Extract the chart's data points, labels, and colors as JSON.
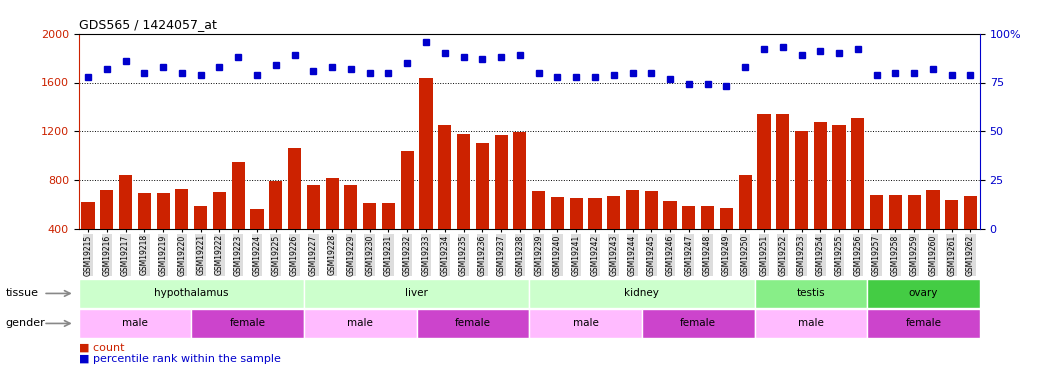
{
  "title": "GDS565 / 1424057_at",
  "samples": [
    "GSM19215",
    "GSM19216",
    "GSM19217",
    "GSM19218",
    "GSM19219",
    "GSM19220",
    "GSM19221",
    "GSM19222",
    "GSM19223",
    "GSM19224",
    "GSM19225",
    "GSM19226",
    "GSM19227",
    "GSM19228",
    "GSM19229",
    "GSM19230",
    "GSM19231",
    "GSM19232",
    "GSM19233",
    "GSM19234",
    "GSM19235",
    "GSM19236",
    "GSM19237",
    "GSM19238",
    "GSM19239",
    "GSM19240",
    "GSM19241",
    "GSM19242",
    "GSM19243",
    "GSM19244",
    "GSM19245",
    "GSM19246",
    "GSM19247",
    "GSM19248",
    "GSM19249",
    "GSM19250",
    "GSM19251",
    "GSM19252",
    "GSM19253",
    "GSM19254",
    "GSM19255",
    "GSM19256",
    "GSM19257",
    "GSM19258",
    "GSM19259",
    "GSM19260",
    "GSM19261",
    "GSM19262"
  ],
  "counts": [
    620,
    720,
    840,
    690,
    690,
    730,
    590,
    700,
    950,
    560,
    790,
    1060,
    760,
    820,
    760,
    610,
    610,
    1040,
    1640,
    1250,
    1180,
    1100,
    1170,
    1190,
    710,
    660,
    650,
    650,
    670,
    720,
    710,
    630,
    590,
    590,
    570,
    840,
    1340,
    1340,
    1200,
    1280,
    1250,
    1310,
    680,
    680,
    680,
    720,
    640,
    670
  ],
  "percentile_ranks": [
    78,
    82,
    86,
    80,
    83,
    80,
    79,
    83,
    88,
    79,
    84,
    89,
    81,
    83,
    82,
    80,
    80,
    85,
    96,
    90,
    88,
    87,
    88,
    89,
    80,
    78,
    78,
    78,
    79,
    80,
    80,
    77,
    74,
    74,
    73,
    83,
    92,
    93,
    89,
    91,
    90,
    92,
    79,
    80,
    80,
    82,
    79,
    79
  ],
  "tissue_groups": [
    {
      "label": "hypothalamus",
      "start": 0,
      "end": 11,
      "color": "#ccffcc"
    },
    {
      "label": "liver",
      "start": 12,
      "end": 23,
      "color": "#ccffcc"
    },
    {
      "label": "kidney",
      "start": 24,
      "end": 35,
      "color": "#ccffcc"
    },
    {
      "label": "testis",
      "start": 36,
      "end": 41,
      "color": "#88ee88"
    },
    {
      "label": "ovary",
      "start": 42,
      "end": 47,
      "color": "#44cc44"
    }
  ],
  "gender_groups": [
    {
      "label": "male",
      "start": 0,
      "end": 5,
      "color": "#ffbbff"
    },
    {
      "label": "female",
      "start": 6,
      "end": 11,
      "color": "#cc44cc"
    },
    {
      "label": "male",
      "start": 12,
      "end": 17,
      "color": "#ffbbff"
    },
    {
      "label": "female",
      "start": 18,
      "end": 23,
      "color": "#cc44cc"
    },
    {
      "label": "male",
      "start": 24,
      "end": 29,
      "color": "#ffbbff"
    },
    {
      "label": "female",
      "start": 30,
      "end": 35,
      "color": "#cc44cc"
    },
    {
      "label": "male",
      "start": 36,
      "end": 41,
      "color": "#ffbbff"
    },
    {
      "label": "female",
      "start": 42,
      "end": 47,
      "color": "#cc44cc"
    }
  ],
  "ylim_left": [
    400,
    2000
  ],
  "ylim_right": [
    0,
    100
  ],
  "yticks_left": [
    400,
    800,
    1200,
    1600,
    2000
  ],
  "yticks_right": [
    0,
    25,
    50,
    75,
    100
  ],
  "bar_color": "#cc2200",
  "dot_color": "#0000cc",
  "background_color": "#ffffff"
}
